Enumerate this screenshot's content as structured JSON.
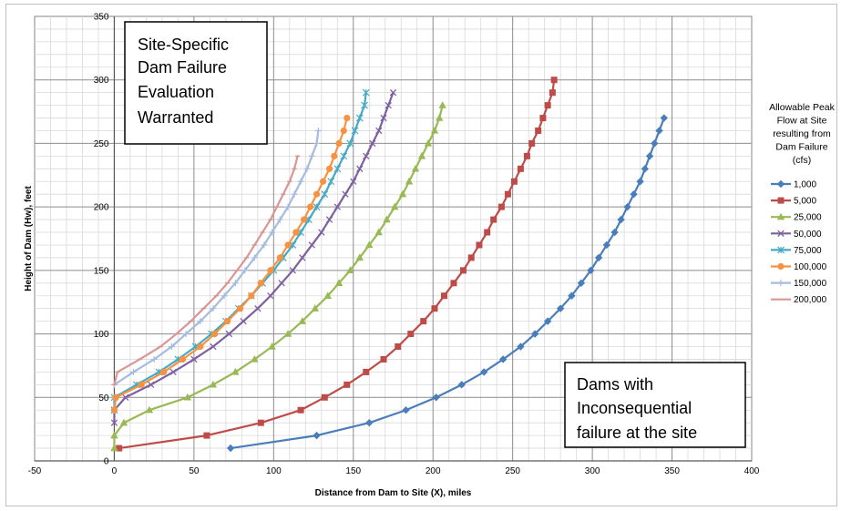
{
  "chart_data": {
    "type": "line",
    "title": "",
    "xlabel": "Distance from Dam to Site (X), miles",
    "ylabel": "Height of Dam (Hw), feet",
    "xlim": [
      -50,
      400
    ],
    "ylim": [
      0,
      350
    ],
    "xticks": [
      -50,
      0,
      50,
      100,
      150,
      200,
      250,
      300,
      350,
      400
    ],
    "yticks": [
      0,
      50,
      100,
      150,
      200,
      250,
      300,
      350
    ],
    "grid": true,
    "legend_position": "right",
    "legend_title": [
      "Allowable Peak",
      "Flow at Site",
      "resulting from",
      "Dam Failure",
      "(cfs)"
    ],
    "annotations": [
      {
        "lines": [
          "Site-Specific",
          "Dam Failure",
          "Evaluation",
          "Warranted"
        ],
        "position": "top-left"
      },
      {
        "lines": [
          "Dams with",
          "Inconsequential",
          "failure at the site"
        ],
        "position": "bottom-right"
      }
    ],
    "series": [
      {
        "name": "1,000",
        "color": "#4a7ebb",
        "marker": "diamond",
        "x": [
          73,
          127,
          160,
          183,
          202,
          218,
          232,
          244,
          255,
          264,
          272,
          280,
          287,
          293,
          299,
          304,
          309,
          314,
          318,
          322,
          326,
          330,
          333,
          336,
          339,
          342,
          345
        ],
        "y": [
          10,
          20,
          30,
          40,
          50,
          60,
          70,
          80,
          90,
          100,
          110,
          120,
          130,
          140,
          150,
          160,
          170,
          180,
          190,
          200,
          210,
          220,
          230,
          240,
          250,
          260,
          270
        ]
      },
      {
        "name": "5,000",
        "color": "#be4b48",
        "marker": "square",
        "x": [
          3,
          58,
          92,
          117,
          132,
          146,
          158,
          169,
          178,
          186,
          194,
          201,
          207,
          213,
          219,
          224,
          229,
          234,
          238,
          243,
          247,
          251,
          255,
          259,
          262,
          266,
          269,
          272,
          275,
          276
        ],
        "y": [
          10,
          20,
          30,
          40,
          50,
          60,
          70,
          80,
          90,
          100,
          110,
          120,
          130,
          140,
          150,
          160,
          170,
          180,
          190,
          200,
          210,
          220,
          230,
          240,
          250,
          260,
          270,
          280,
          290,
          300
        ]
      },
      {
        "name": "25,000",
        "color": "#98b954",
        "marker": "triangle",
        "x": [
          0,
          0,
          6,
          22,
          46,
          62,
          76,
          88,
          99,
          109,
          118,
          126,
          134,
          141,
          148,
          154,
          160,
          166,
          171,
          176,
          181,
          185,
          189,
          193,
          197,
          201,
          204,
          206
        ],
        "y": [
          10,
          20,
          30,
          40,
          50,
          60,
          70,
          80,
          90,
          100,
          110,
          120,
          130,
          140,
          150,
          160,
          170,
          180,
          190,
          200,
          210,
          220,
          230,
          240,
          250,
          260,
          270,
          280
        ]
      },
      {
        "name": "50,000",
        "color": "#7d60a0",
        "marker": "x",
        "x": [
          0,
          0,
          7,
          23,
          37,
          50,
          62,
          72,
          81,
          90,
          98,
          105,
          112,
          118,
          124,
          130,
          135,
          140,
          145,
          150,
          154,
          158,
          162,
          166,
          169,
          172,
          175
        ],
        "y": [
          30,
          40,
          50,
          60,
          70,
          80,
          90,
          100,
          110,
          120,
          130,
          140,
          150,
          160,
          170,
          180,
          190,
          200,
          210,
          220,
          230,
          240,
          250,
          260,
          270,
          280,
          290
        ]
      },
      {
        "name": "75,000",
        "color": "#46aac5",
        "marker": "star",
        "x": [
          0,
          0,
          14,
          28,
          40,
          51,
          61,
          70,
          78,
          86,
          93,
          100,
          106,
          112,
          117,
          122,
          127,
          132,
          136,
          140,
          144,
          148,
          151,
          154,
          157,
          158
        ],
        "y": [
          40,
          50,
          60,
          70,
          80,
          90,
          100,
          110,
          120,
          130,
          140,
          150,
          160,
          170,
          180,
          190,
          200,
          210,
          220,
          230,
          240,
          250,
          260,
          270,
          280,
          290
        ]
      },
      {
        "name": "100,000",
        "color": "#f69240",
        "marker": "circle",
        "x": [
          0,
          1,
          17,
          31,
          43,
          54,
          63,
          71,
          79,
          86,
          92,
          98,
          104,
          109,
          114,
          119,
          123,
          127,
          131,
          135,
          138,
          141,
          144,
          146
        ],
        "y": [
          40,
          50,
          60,
          70,
          80,
          90,
          100,
          110,
          120,
          130,
          140,
          150,
          160,
          170,
          180,
          190,
          200,
          210,
          220,
          230,
          240,
          250,
          260,
          270
        ]
      },
      {
        "name": "150,000",
        "color": "#a5bbe0",
        "marker": "plus",
        "x": [
          0,
          12,
          25,
          36,
          45,
          54,
          62,
          69,
          76,
          82,
          88,
          94,
          99,
          104,
          109,
          113,
          117,
          121,
          124,
          127,
          128
        ],
        "y": [
          60,
          70,
          80,
          90,
          100,
          110,
          120,
          130,
          140,
          150,
          160,
          170,
          180,
          190,
          200,
          210,
          220,
          230,
          240,
          250,
          260
        ]
      },
      {
        "name": "200,000",
        "color": "#d99694",
        "marker": "dash",
        "x": [
          0,
          2,
          16,
          29,
          39,
          48,
          56,
          64,
          71,
          77,
          83,
          88,
          93,
          98,
          102,
          106,
          110,
          113,
          115
        ],
        "y": [
          60,
          70,
          80,
          90,
          100,
          110,
          120,
          130,
          140,
          150,
          160,
          170,
          180,
          190,
          200,
          210,
          220,
          230,
          240
        ]
      }
    ]
  }
}
